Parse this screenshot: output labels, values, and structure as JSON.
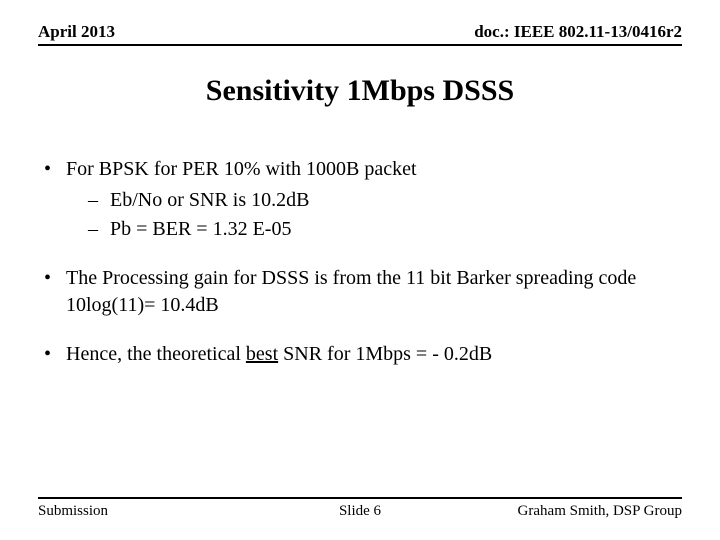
{
  "header": {
    "left": "April 2013",
    "right": "doc.: IEEE 802.11-13/0416r2"
  },
  "title": "Sensitivity 1Mbps DSSS",
  "bullets": {
    "b1": {
      "text": "For BPSK  for PER 10% with 1000B packet",
      "sub1": "Eb/No or SNR is 10.2dB",
      "sub2": "Pb = BER = 1.32 E-05"
    },
    "b2": {
      "line1": "The Processing gain for DSSS is from the 11 bit Barker spreading code",
      "line2": "10log(11)= 10.4dB"
    },
    "b3": {
      "pre": "Hence, the theoretical ",
      "under": "best",
      "post": " SNR for 1Mbps = - 0.2dB"
    }
  },
  "footer": {
    "left": "Submission",
    "center": "Slide 6",
    "right": "Graham Smith, DSP Group"
  }
}
